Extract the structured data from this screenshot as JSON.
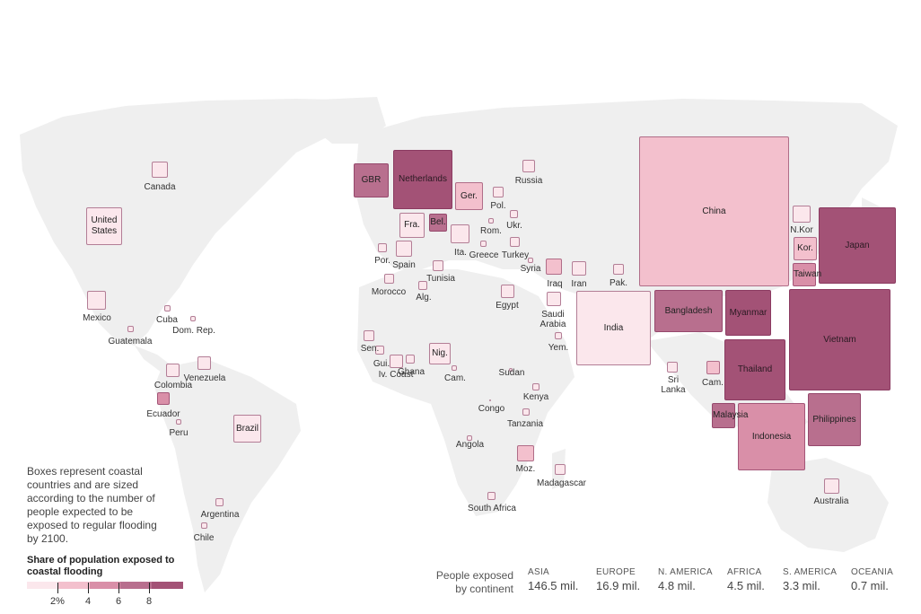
{
  "colors": {
    "land": "#efefef",
    "scale": [
      "#fbe7ec",
      "#f3c0cd",
      "#d98fa8",
      "#b86f8e",
      "#a35276"
    ]
  },
  "boxes": [
    {
      "id": "china",
      "label": "China",
      "level": 1
    },
    {
      "id": "india",
      "label": "India",
      "level": 0
    },
    {
      "id": "vietnam",
      "label": "Vietnam",
      "level": 4
    },
    {
      "id": "japan",
      "label": "Japan",
      "level": 4
    },
    {
      "id": "bangladesh",
      "label": "Bangladesh",
      "level": 3
    },
    {
      "id": "indonesia",
      "label": "Indonesia",
      "level": 2
    },
    {
      "id": "thailand",
      "label": "Thailand",
      "level": 4
    },
    {
      "id": "myanmar",
      "label": "Myanmar",
      "level": 4
    },
    {
      "id": "philippines",
      "label": "Philippines",
      "level": 3
    },
    {
      "id": "netherlands",
      "label": "Netherlands",
      "level": 4
    },
    {
      "id": "gbr",
      "label": "GBR",
      "level": 3
    },
    {
      "id": "ger",
      "label": "Ger.",
      "level": 1
    },
    {
      "id": "fra",
      "label": "Fra.",
      "level": 0
    },
    {
      "id": "bel",
      "label": "Bel.",
      "level": 3
    },
    {
      "id": "us",
      "label": "United\nStates",
      "level": 0
    },
    {
      "id": "brazil",
      "label": "Brazil",
      "level": 0
    },
    {
      "id": "nig",
      "label": "Nig.",
      "level": 0
    },
    {
      "id": "kor",
      "label": "Kor.",
      "level": 1
    },
    {
      "id": "taiwan",
      "label": "Taiwan",
      "level": 2
    },
    {
      "id": "malaysia",
      "label": "Malaysia",
      "level": 3
    }
  ],
  "minor_boxes": [
    {
      "id": "canada",
      "level": 0
    },
    {
      "id": "mexico",
      "level": 0
    },
    {
      "id": "cuba",
      "level": 0
    },
    {
      "id": "domrep",
      "level": 0
    },
    {
      "id": "guatemala",
      "level": 0
    },
    {
      "id": "colombia",
      "level": 0
    },
    {
      "id": "venezuela",
      "level": 0
    },
    {
      "id": "ecuador",
      "level": 2
    },
    {
      "id": "peru",
      "level": 0
    },
    {
      "id": "argentina",
      "level": 0
    },
    {
      "id": "chile",
      "level": 0
    },
    {
      "id": "russia",
      "level": 0
    },
    {
      "id": "pol",
      "level": 0
    },
    {
      "id": "ukr",
      "level": 0
    },
    {
      "id": "rom",
      "level": 0
    },
    {
      "id": "turkey",
      "level": 0
    },
    {
      "id": "greece",
      "level": 0
    },
    {
      "id": "ita",
      "level": 0
    },
    {
      "id": "spain",
      "level": 0
    },
    {
      "id": "por",
      "level": 0
    },
    {
      "id": "morocco",
      "level": 0
    },
    {
      "id": "alg",
      "level": 0
    },
    {
      "id": "tunisia",
      "level": 0
    },
    {
      "id": "syria",
      "level": 0
    },
    {
      "id": "iraq",
      "level": 1
    },
    {
      "id": "iran",
      "level": 0
    },
    {
      "id": "pak",
      "level": 0
    },
    {
      "id": "egypt",
      "level": 0
    },
    {
      "id": "saudi",
      "level": 0
    },
    {
      "id": "yem",
      "level": 0
    },
    {
      "id": "sen",
      "level": 0
    },
    {
      "id": "gui",
      "level": 0
    },
    {
      "id": "ivcoast",
      "level": 0
    },
    {
      "id": "ghana",
      "level": 0
    },
    {
      "id": "cam_af",
      "level": 0
    },
    {
      "id": "sudan",
      "level": 0
    },
    {
      "id": "kenya",
      "level": 0
    },
    {
      "id": "tanzania",
      "level": 0
    },
    {
      "id": "congo",
      "level": 0
    },
    {
      "id": "angola",
      "level": 0
    },
    {
      "id": "moz",
      "level": 1
    },
    {
      "id": "madagascar",
      "level": 0
    },
    {
      "id": "southafrica",
      "level": 0
    },
    {
      "id": "srilanka",
      "level": 0
    },
    {
      "id": "cam_as",
      "level": 1
    },
    {
      "id": "nkor",
      "level": 0
    },
    {
      "id": "australia",
      "level": 0
    }
  ],
  "labels": [
    {
      "id": "canada",
      "text": "Canada"
    },
    {
      "id": "mexico",
      "text": "Mexico"
    },
    {
      "id": "cuba",
      "text": "Cuba"
    },
    {
      "id": "domrep",
      "text": "Dom. Rep."
    },
    {
      "id": "guatemala",
      "text": "Guatemala"
    },
    {
      "id": "colombia",
      "text": "Colombia"
    },
    {
      "id": "venezuela",
      "text": "Venezuela"
    },
    {
      "id": "ecuador",
      "text": "Ecuador"
    },
    {
      "id": "peru",
      "text": "Peru"
    },
    {
      "id": "argentina",
      "text": "Argentina"
    },
    {
      "id": "chile",
      "text": "Chile"
    },
    {
      "id": "russia",
      "text": "Russia"
    },
    {
      "id": "pol",
      "text": "Pol."
    },
    {
      "id": "ukr",
      "text": "Ukr."
    },
    {
      "id": "rom",
      "text": "Rom."
    },
    {
      "id": "turkey",
      "text": "Turkey"
    },
    {
      "id": "greece",
      "text": "Greece"
    },
    {
      "id": "ita",
      "text": "Ita."
    },
    {
      "id": "spain",
      "text": "Spain"
    },
    {
      "id": "por",
      "text": "Por."
    },
    {
      "id": "morocco",
      "text": "Morocco"
    },
    {
      "id": "alg",
      "text": "Alg."
    },
    {
      "id": "tunisia",
      "text": "Tunisia"
    },
    {
      "id": "syria",
      "text": "Syria"
    },
    {
      "id": "iraq",
      "text": "Iraq"
    },
    {
      "id": "iran",
      "text": "Iran"
    },
    {
      "id": "pak",
      "text": "Pak."
    },
    {
      "id": "egypt",
      "text": "Egypt"
    },
    {
      "id": "saudi",
      "text": "Saudi\nArabia"
    },
    {
      "id": "yem",
      "text": "Yem."
    },
    {
      "id": "sen",
      "text": "Sen."
    },
    {
      "id": "gui",
      "text": "Gui."
    },
    {
      "id": "ivcoast",
      "text": "Iv. Coast"
    },
    {
      "id": "ghana",
      "text": "Ghana"
    },
    {
      "id": "cam_af",
      "text": "Cam."
    },
    {
      "id": "sudan",
      "text": "Sudan"
    },
    {
      "id": "kenya",
      "text": "Kenya"
    },
    {
      "id": "tanzania",
      "text": "Tanzania"
    },
    {
      "id": "congo",
      "text": "Congo"
    },
    {
      "id": "angola",
      "text": "Angola"
    },
    {
      "id": "moz",
      "text": "Moz."
    },
    {
      "id": "madagascar",
      "text": "Madagascar"
    },
    {
      "id": "southafrica",
      "text": "South Africa"
    },
    {
      "id": "srilanka",
      "text": "Sri\nLanka"
    },
    {
      "id": "cam_as",
      "text": "Cam."
    },
    {
      "id": "nkor",
      "text": "N.Kor"
    },
    {
      "id": "australia",
      "text": "Australia"
    }
  ],
  "note": "Boxes represent coastal countries and are sized according to the number of people expected to be exposed to regular flooding by 2100.",
  "legend": {
    "title": "Share of population exposed to coastal flooding",
    "ticks": [
      "2%",
      "4",
      "6",
      "8"
    ]
  },
  "continents": {
    "heading": "People exposed\nby continent",
    "items": [
      {
        "name": "ASIA",
        "value": "146.5 mil."
      },
      {
        "name": "EUROPE",
        "value": "16.9 mil."
      },
      {
        "name": "N. AMERICA",
        "value": "4.8 mil."
      },
      {
        "name": "AFRICA",
        "value": "4.5 mil."
      },
      {
        "name": "S. AMERICA",
        "value": "3.3 mil."
      },
      {
        "name": "OCEANIA",
        "value": "0.7 mil."
      }
    ]
  }
}
